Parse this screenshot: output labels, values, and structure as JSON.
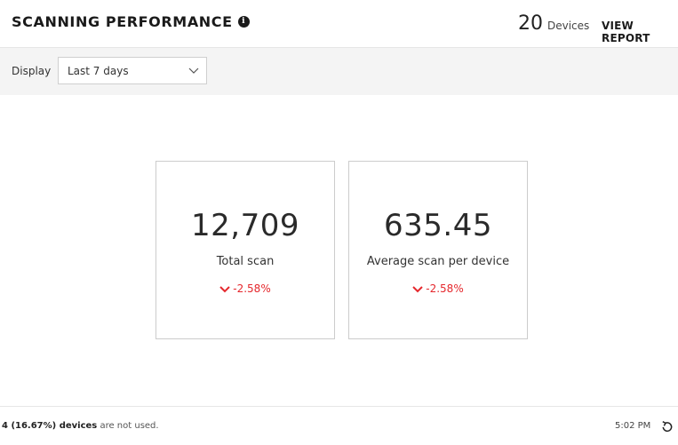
{
  "header": {
    "title": "SCANNING PERFORMANCE",
    "info_icon": "info-icon",
    "devices_count": "20",
    "devices_label": "Devices",
    "view_report": "VIEW REPORT"
  },
  "filter": {
    "label": "Display",
    "selected": "Last 7 days",
    "chevron_icon": "chevron-down-icon"
  },
  "cards": [
    {
      "value": "12,709",
      "label": "Total scan",
      "change": "-2.58%",
      "trend_icon": "chevron-down-icon"
    },
    {
      "value": "635.45",
      "label": "Average scan per device",
      "change": "-2.58%",
      "trend_icon": "chevron-down-icon"
    }
  ],
  "footer": {
    "unused_count": "4 (16.67%) devices",
    "unused_suffix": "are not used.",
    "time": "5:02 PM",
    "refresh_icon": "refresh-icon"
  },
  "colors": {
    "negative": "#e5282d",
    "filter_background": "#f4f4f4",
    "border": "#cccccc"
  }
}
